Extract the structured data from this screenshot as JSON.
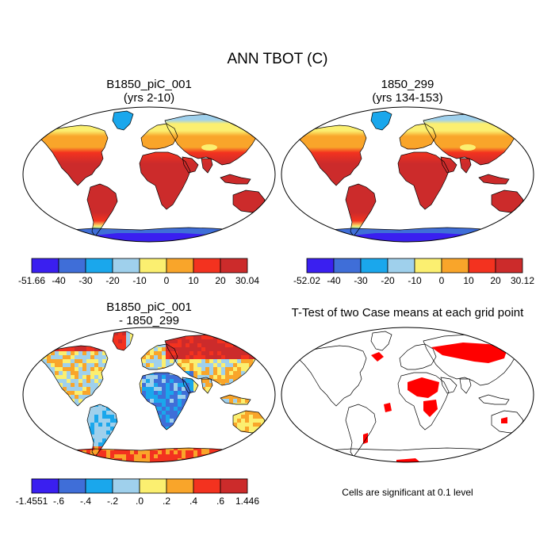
{
  "title": "ANN TBOT (C)",
  "colors": {
    "ocean": "#ffffff",
    "outline": "#000000",
    "significant": "#ff0000"
  },
  "panels": [
    {
      "title": "B1850_piC_001",
      "subtitle": "(yrs 2-10)",
      "colorbar": {
        "labels": [
          "-51.66",
          "-40",
          "-30",
          "-20",
          "-10",
          "0",
          "10",
          "20",
          "30.04"
        ],
        "colors": [
          "#3a1ff0",
          "#3f6ed8",
          "#1aa7ec",
          "#9fd0ec",
          "#fbef70",
          "#f9a52a",
          "#f3321f",
          "#cc2b2b"
        ]
      }
    },
    {
      "title": "1850_299",
      "subtitle": "(yrs 134-153)",
      "colorbar": {
        "labels": [
          "-52.02",
          "-40",
          "-30",
          "-20",
          "-10",
          "0",
          "10",
          "20",
          "30.12"
        ],
        "colors": [
          "#3a1ff0",
          "#3f6ed8",
          "#1aa7ec",
          "#9fd0ec",
          "#fbef70",
          "#f9a52a",
          "#f3321f",
          "#cc2b2b"
        ]
      }
    },
    {
      "title": "B1850_piC_001",
      "subtitle": "- 1850_299",
      "colorbar": {
        "labels": [
          "-1.4551",
          "-.6",
          "-.4",
          "-.2",
          ".0",
          ".2",
          ".4",
          ".6",
          "1.446"
        ],
        "colors": [
          "#3a1ff0",
          "#3f6ed8",
          "#1aa7ec",
          "#9fd0ec",
          "#fbef70",
          "#f9a52a",
          "#f3321f",
          "#cc2b2b"
        ]
      }
    },
    {
      "title": "T-Test of two Case means at each grid point",
      "subtitle": "",
      "note": "Cells are significant at 0.1 level"
    }
  ]
}
